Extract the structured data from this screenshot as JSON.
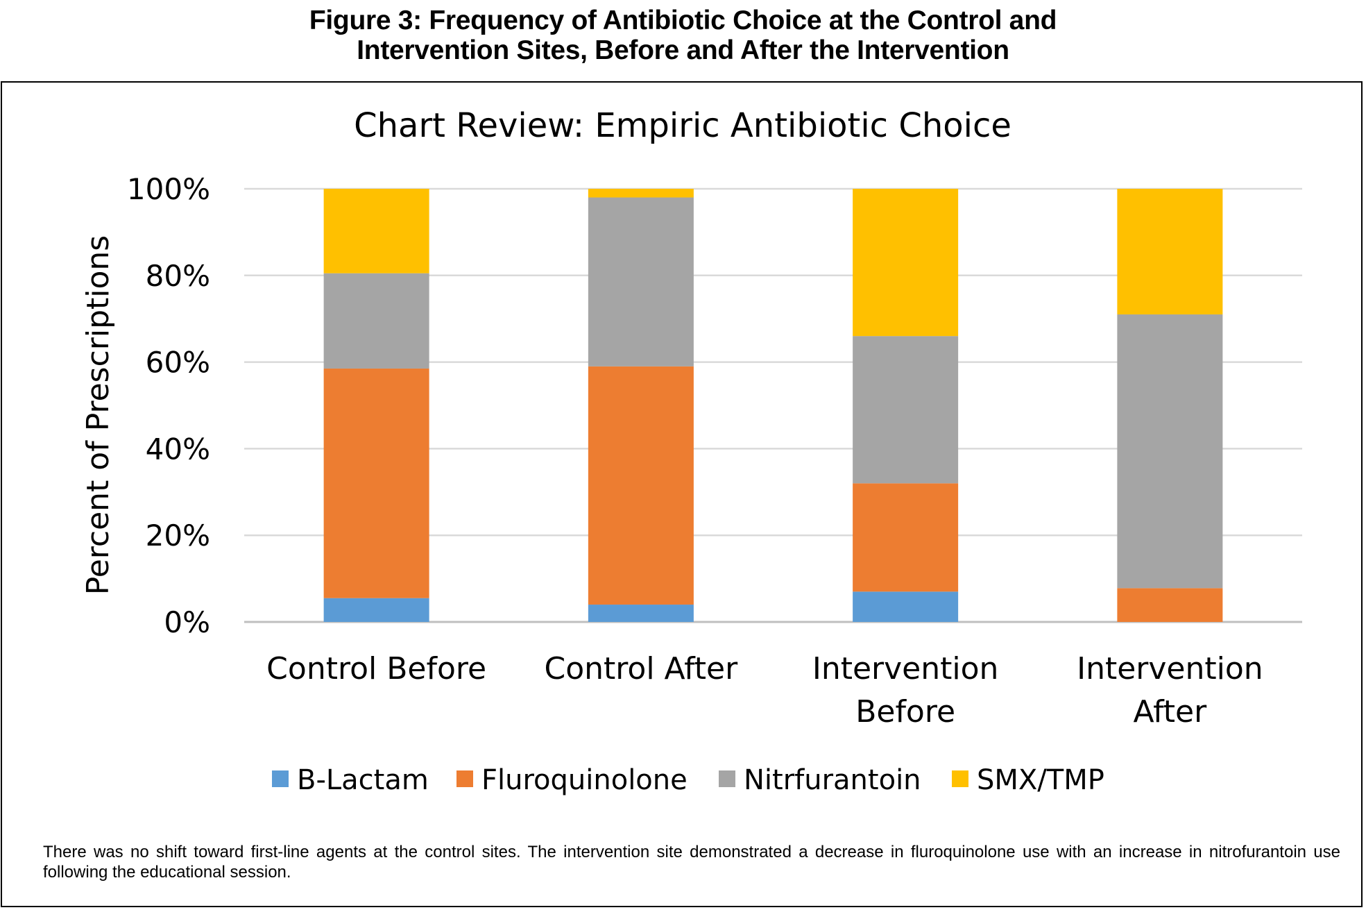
{
  "figure": {
    "heading_line1": "Figure 3: Frequency of Antibiotic Choice at the Control and",
    "heading_line2": "Intervention Sites, Before and After the Intervention",
    "caption": "There was no shift toward first-line agents at the control sites. The intervention site demonstrated a decrease in fluroquinolone use with an increase in nitrofurantoin use following the educational session."
  },
  "chart_data": {
    "type": "bar",
    "stacked": true,
    "title": "Chart Review: Empiric Antibiotic Choice",
    "xlabel": "",
    "ylabel": "Percent of Prescriptions",
    "ylim": [
      0,
      100
    ],
    "yticks": [
      "0%",
      "20%",
      "40%",
      "60%",
      "80%",
      "100%"
    ],
    "categories": [
      [
        "Control Before"
      ],
      [
        "Control After"
      ],
      [
        "Intervention",
        "Before"
      ],
      [
        "Intervention",
        "After"
      ]
    ],
    "series": [
      {
        "name": "B-Lactam",
        "color": "#5B9BD5",
        "values": [
          5.5,
          4,
          7,
          0
        ]
      },
      {
        "name": "Fluroquinolone",
        "color": "#ED7D31",
        "values": [
          53,
          55,
          25,
          7.8
        ]
      },
      {
        "name": "Nitrfurantoin",
        "color": "#A5A5A5",
        "values": [
          22,
          39,
          34,
          63.2
        ]
      },
      {
        "name": "SMX/TMP",
        "color": "#FFC000",
        "values": [
          19.5,
          2,
          34,
          29
        ]
      }
    ],
    "grid": true,
    "legend_position": "bottom"
  }
}
